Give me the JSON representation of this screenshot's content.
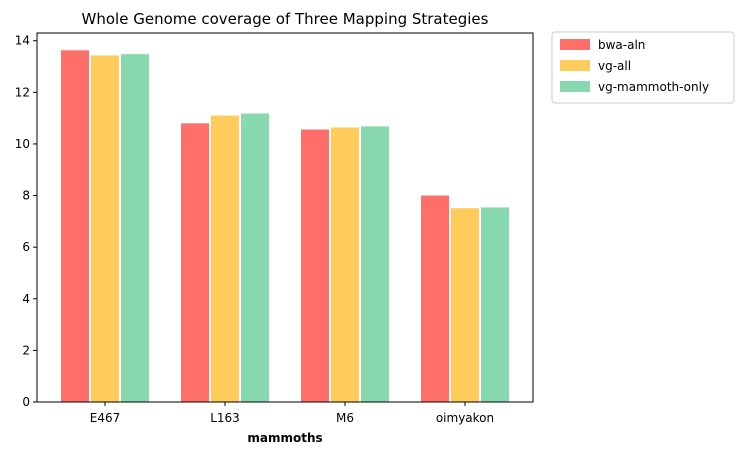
{
  "chart_data": {
    "type": "bar",
    "title": "Whole Genome coverage of Three Mapping Strategies",
    "xlabel": "mammoths",
    "ylabel": "",
    "categories": [
      "E467",
      "L163",
      "M6",
      "oimyakon"
    ],
    "ylim": [
      0,
      14.3
    ],
    "yticks": [
      0,
      2,
      4,
      6,
      8,
      10,
      12,
      14
    ],
    "series": [
      {
        "name": "bwa-aln",
        "color": "#ff6f69",
        "values": [
          13.65,
          10.82,
          10.58,
          8.02
        ]
      },
      {
        "name": "vg-all",
        "color": "#ffcc5c",
        "values": [
          13.45,
          11.12,
          10.66,
          7.53
        ]
      },
      {
        "name": "vg-mammoth-only",
        "color": "#88d8b0",
        "values": [
          13.5,
          11.2,
          10.7,
          7.56
        ]
      }
    ],
    "grid": false,
    "legend_position": "outside top-right"
  }
}
